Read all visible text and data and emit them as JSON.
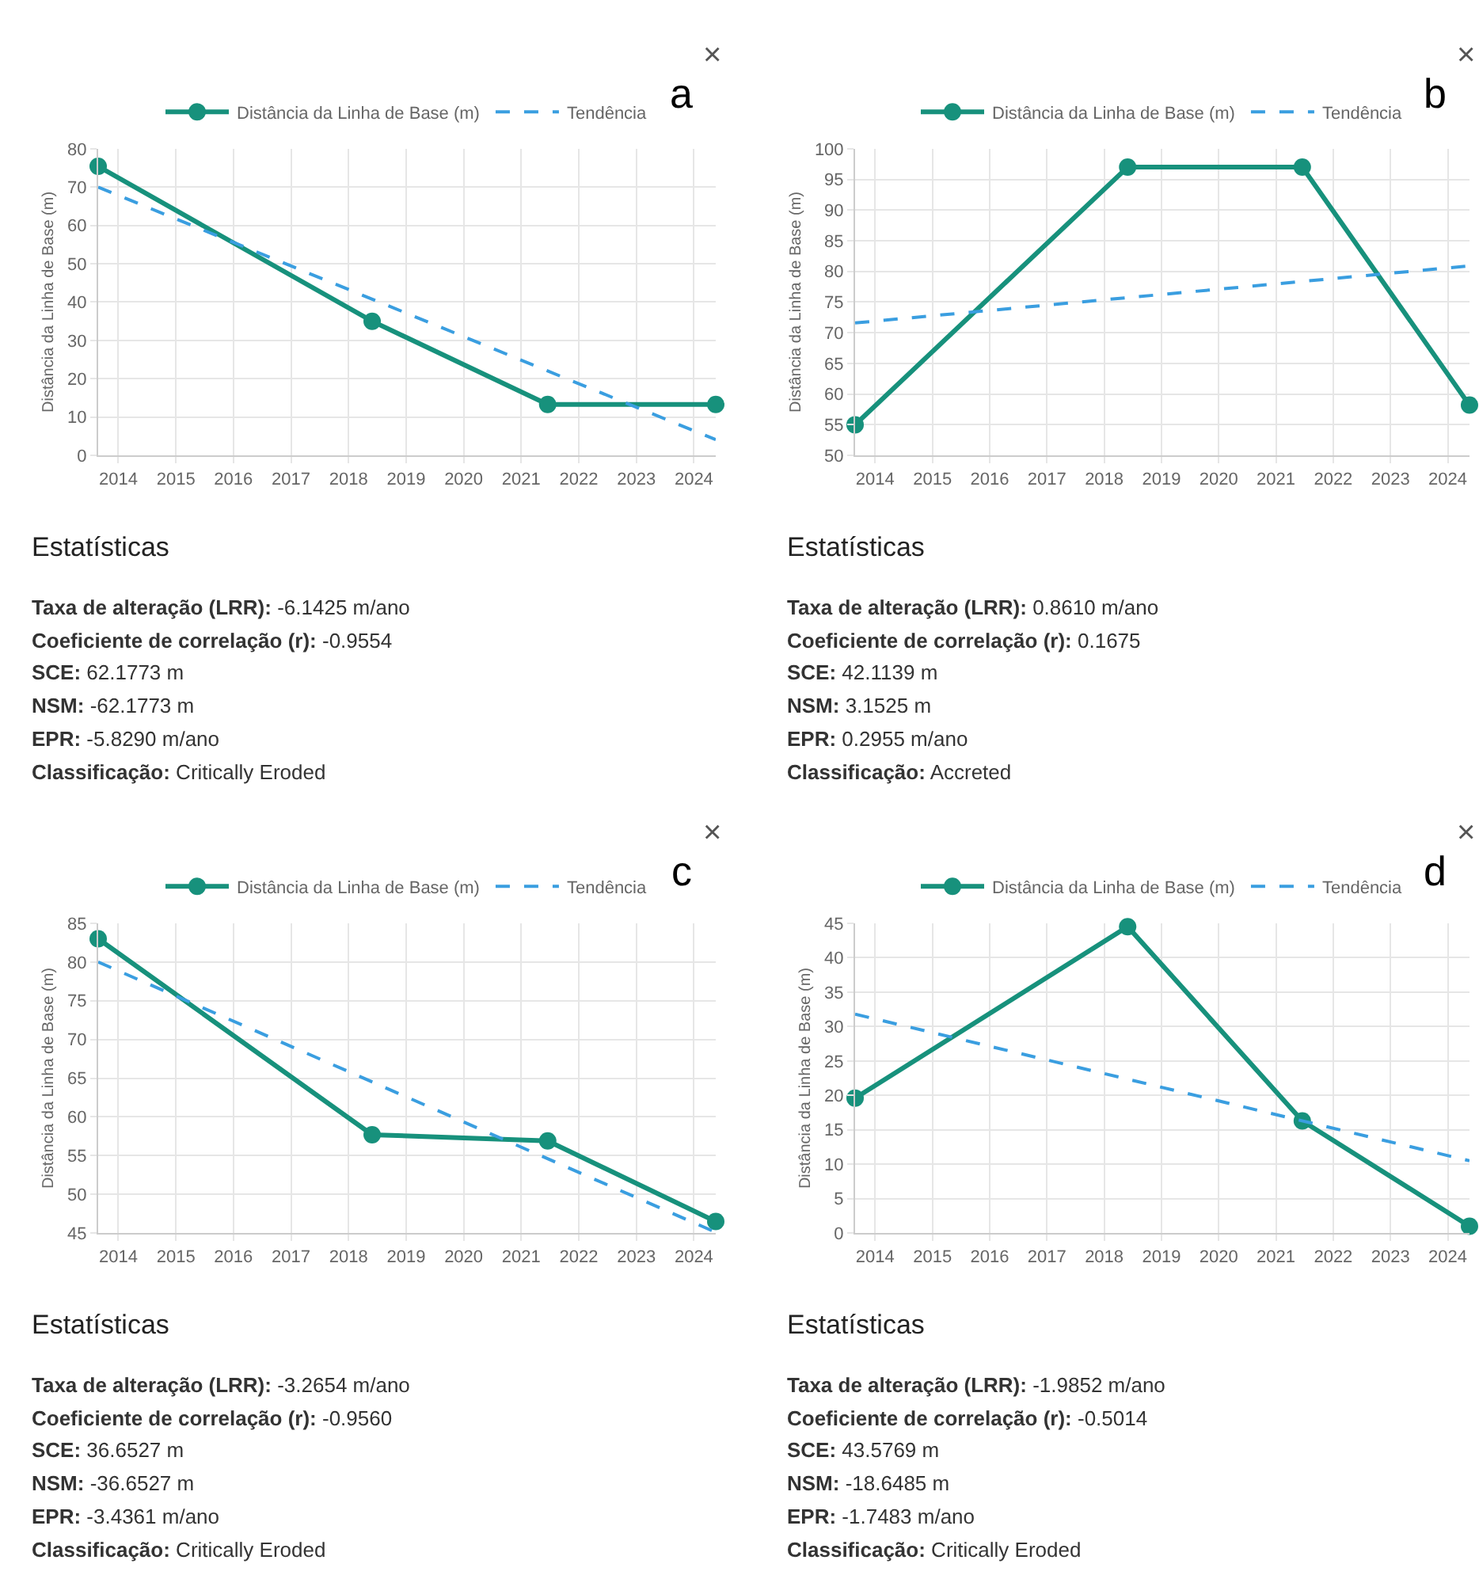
{
  "chart_data": [
    {
      "type": "line",
      "ylabel": "Distância da Linha de Base (m)",
      "xlim": [
        2013.65,
        2024.38
      ],
      "xticks": [
        2014,
        2015,
        2016,
        2017,
        2018,
        2019,
        2020,
        2021,
        2022,
        2023,
        2024
      ],
      "ylim": [
        0,
        80
      ],
      "yticks": [
        0,
        10,
        20,
        30,
        40,
        50,
        60,
        70,
        80
      ],
      "grid": true,
      "legend": "top",
      "series": [
        {
          "name": "Distância da Linha de Base (m)",
          "color": "#17917c",
          "x": [
            2013.65,
            2018.41,
            2021.46,
            2024.38
          ],
          "values": [
            75.4,
            35,
            13.3,
            13.3
          ],
          "marker": "circle",
          "line_style": "solid"
        },
        {
          "name": "Tendência",
          "color": "#3a9ee0",
          "x": [
            2013.65,
            2024.38
          ],
          "values": [
            70,
            4.1
          ],
          "marker": "none",
          "line_style": "dashed"
        }
      ],
      "annotations": [
        "a",
        "×",
        "Estatísticas",
        "Taxa de alteração (LRR): -6.1425 m/ano",
        "Coeficiente de correlação (r): -0.9554",
        "SCE: 62.1773 m",
        "NSM: -62.1773 m",
        "EPR: -5.8290 m/ano",
        "Classificação: Critically Eroded"
      ]
    },
    {
      "type": "line",
      "ylabel": "Distância da Linha de Base (m)",
      "xlim": [
        2013.65,
        2024.38
      ],
      "xticks": [
        2014,
        2015,
        2016,
        2017,
        2018,
        2019,
        2020,
        2021,
        2022,
        2023,
        2024
      ],
      "ylim": [
        50,
        100
      ],
      "yticks": [
        50,
        55,
        60,
        65,
        70,
        75,
        80,
        85,
        90,
        95,
        100
      ],
      "grid": true,
      "legend": "top",
      "series": [
        {
          "name": "Distância da Linha de Base (m)",
          "color": "#17917c",
          "x": [
            2013.65,
            2018.41,
            2021.46,
            2024.38
          ],
          "values": [
            55,
            97,
            97,
            58.2
          ],
          "marker": "circle",
          "line_style": "solid"
        },
        {
          "name": "Tendência",
          "color": "#3a9ee0",
          "x": [
            2013.65,
            2024.38
          ],
          "values": [
            71.6,
            80.9
          ],
          "marker": "none",
          "line_style": "dashed"
        }
      ],
      "annotations": [
        "b",
        "×",
        "Estatísticas",
        "Taxa de alteração (LRR): 0.8610 m/ano",
        "Coeficiente de correlação (r): 0.1675",
        "SCE: 42.1139 m",
        "NSM: 3.1525 m",
        "EPR: 0.2955 m/ano",
        "Classificação: Accreted"
      ]
    },
    {
      "type": "line",
      "ylabel": "Distância da Linha de Base (m)",
      "xlim": [
        2013.65,
        2024.38
      ],
      "xticks": [
        2014,
        2015,
        2016,
        2017,
        2018,
        2019,
        2020,
        2021,
        2022,
        2023,
        2024
      ],
      "ylim": [
        45,
        85
      ],
      "yticks": [
        45,
        50,
        55,
        60,
        65,
        70,
        75,
        80,
        85
      ],
      "grid": true,
      "legend": "top",
      "series": [
        {
          "name": "Distância da Linha de Base (m)",
          "color": "#17917c",
          "x": [
            2013.65,
            2018.41,
            2021.46,
            2024.38
          ],
          "values": [
            83,
            57.7,
            56.9,
            46.5
          ],
          "marker": "circle",
          "line_style": "solid"
        },
        {
          "name": "Tendência",
          "color": "#3a9ee0",
          "x": [
            2013.65,
            2024.38
          ],
          "values": [
            80,
            45.1
          ],
          "marker": "none",
          "line_style": "dashed"
        }
      ],
      "annotations": [
        "c",
        "×",
        "Estatísticas",
        "Taxa de alteração (LRR): -3.2654 m/ano",
        "Coeficiente de correlação (r): -0.9560",
        "SCE: 36.6527 m",
        "NSM: -36.6527 m",
        "EPR: -3.4361 m/ano",
        "Classificação: Critically Eroded"
      ]
    },
    {
      "type": "line",
      "ylabel": "Distância da Linha de Base (m)",
      "xlim": [
        2013.65,
        2024.38
      ],
      "xticks": [
        2014,
        2015,
        2016,
        2017,
        2018,
        2019,
        2020,
        2021,
        2022,
        2023,
        2024
      ],
      "ylim": [
        0,
        45
      ],
      "yticks": [
        0,
        5,
        10,
        15,
        20,
        25,
        30,
        35,
        40,
        45
      ],
      "grid": true,
      "legend": "top",
      "series": [
        {
          "name": "Distância da Linha de Base (m)",
          "color": "#17917c",
          "x": [
            2013.65,
            2018.41,
            2021.46,
            2024.38
          ],
          "values": [
            19.6,
            44.5,
            16.3,
            1
          ],
          "marker": "circle",
          "line_style": "solid"
        },
        {
          "name": "Tendência",
          "color": "#3a9ee0",
          "x": [
            2013.65,
            2024.38
          ],
          "values": [
            31.8,
            10.5
          ],
          "marker": "none",
          "line_style": "dashed"
        }
      ],
      "annotations": [
        "d",
        "×",
        "Estatísticas",
        "Taxa de alteração (LRR): -1.9852 m/ano",
        "Coeficiente de correlação (r): -0.5014",
        "SCE: 43.5769 m",
        "NSM: -18.6485 m",
        "EPR: -1.7483 m/ano",
        "Classificação: Critically Eroded"
      ]
    }
  ]
}
